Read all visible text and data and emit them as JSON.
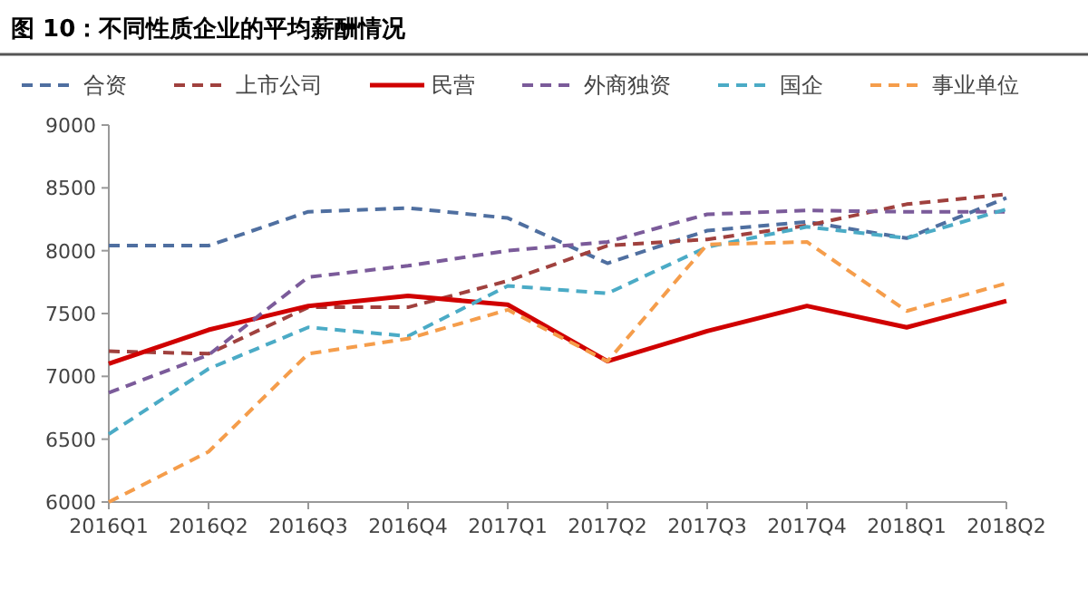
{
  "chart_data": {
    "type": "line",
    "title": "图 10：不同性质企业的平均薪酬情况",
    "categories": [
      "2016Q1",
      "2016Q2",
      "2016Q3",
      "2016Q4",
      "2017Q1",
      "2017Q2",
      "2017Q3",
      "2017Q4",
      "2018Q1",
      "2018Q2"
    ],
    "ylim": [
      6000,
      9000
    ],
    "yticks": [
      6000,
      6500,
      7000,
      7500,
      8000,
      8500,
      9000
    ],
    "legend": "top",
    "series": [
      {
        "name": "合资",
        "color": "#4f6fa0",
        "line_style": "dashed",
        "values": [
          8040,
          8040,
          8310,
          8340,
          8260,
          7900,
          8160,
          8230,
          8100,
          8420
        ]
      },
      {
        "name": "上市公司",
        "color": "#a0413e",
        "line_style": "dashed",
        "values": [
          7200,
          7180,
          7550,
          7550,
          7760,
          8040,
          8090,
          8200,
          8370,
          8450
        ]
      },
      {
        "name": "民营",
        "color": "#d00000",
        "line_style": "solid",
        "values": [
          7100,
          7370,
          7560,
          7640,
          7570,
          7120,
          7360,
          7560,
          7390,
          7600
        ]
      },
      {
        "name": "外商独资",
        "color": "#7b5b9a",
        "line_style": "dashed",
        "values": [
          6870,
          7170,
          7790,
          7880,
          8000,
          8070,
          8290,
          8320,
          8310,
          8310
        ]
      },
      {
        "name": "国企",
        "color": "#4babc6",
        "line_style": "dashed",
        "values": [
          6540,
          7060,
          7390,
          7320,
          7720,
          7660,
          8030,
          8190,
          8100,
          8330
        ]
      },
      {
        "name": "事业单位",
        "color": "#f59d4b",
        "line_style": "dashed",
        "values": [
          6000,
          6400,
          7180,
          7300,
          7530,
          7120,
          8050,
          8070,
          7520,
          7740
        ]
      }
    ]
  }
}
